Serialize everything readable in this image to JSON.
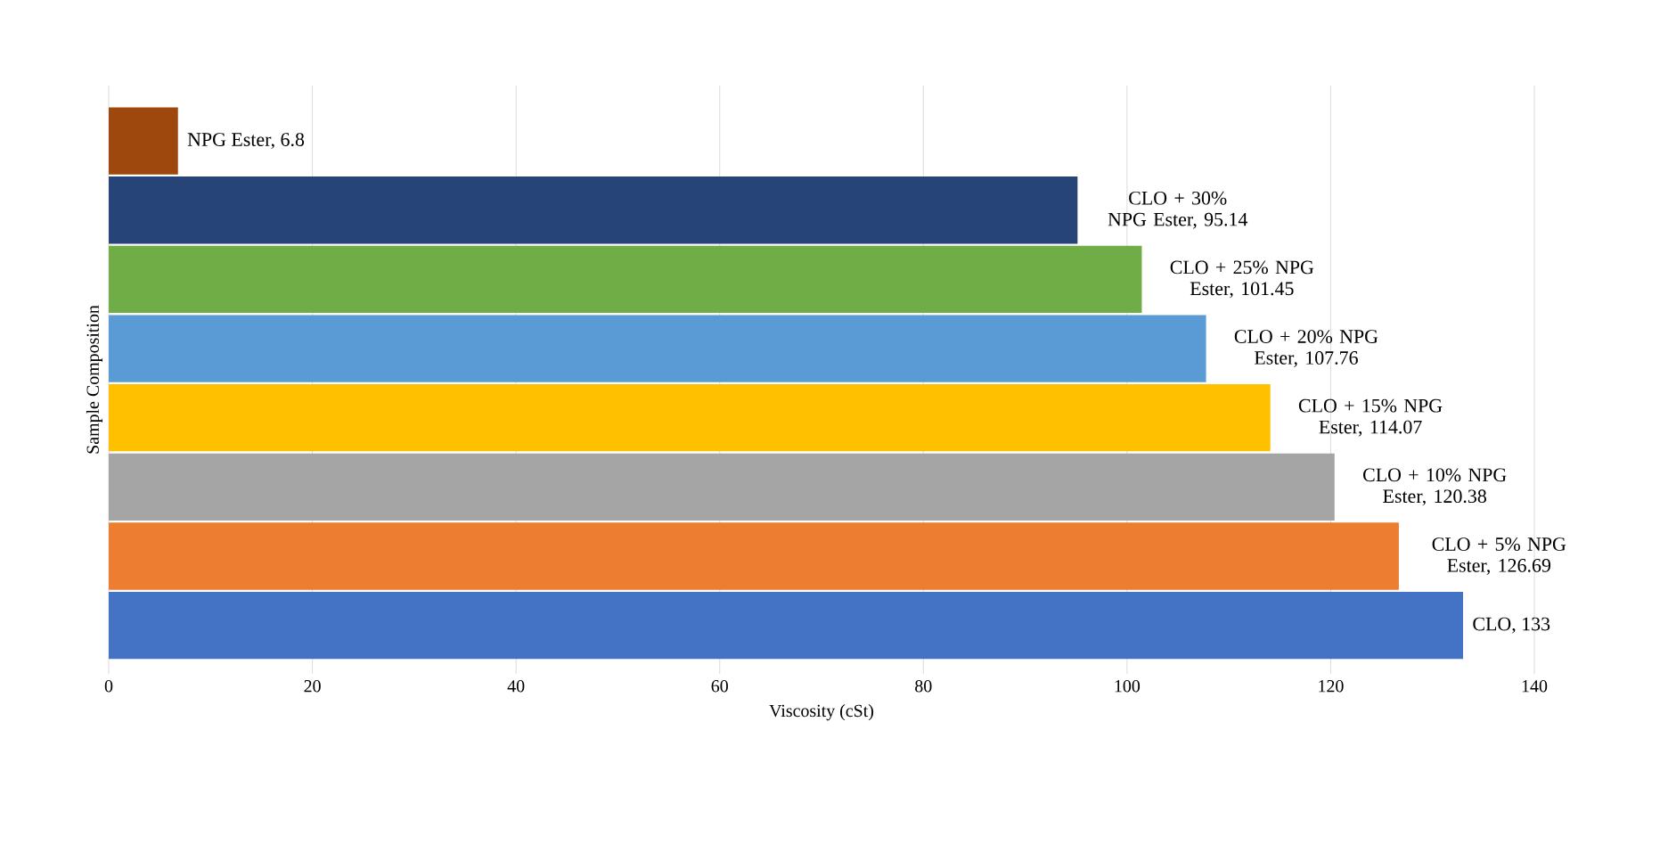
{
  "chart_data": {
    "type": "bar",
    "orientation": "horizontal",
    "xlabel": "Viscosity (cSt)",
    "ylabel": "Sample Composition",
    "categories": [
      null,
      null,
      null,
      null,
      null,
      null,
      null,
      null
    ],
    "values": [
      6.8,
      95.14,
      101.45,
      107.76,
      114.07,
      120.38,
      126.69,
      133
    ],
    "colors": [
      "#9e480e",
      "#264478",
      "#70ad47",
      "#5b9bd5",
      "#ffc000",
      "#a5a5a5",
      "#ed7d31",
      "#4472c4"
    ],
    "value_labels": [
      "NPG Ester, 6.8",
      "CLO + 30% NPG Ester, 95.14",
      "CLO + 25% NPG Ester, 101.45",
      "CLO + 20% NPG Ester, 107.76",
      "CLO + 15% NPG Ester, 114.07",
      "CLO + 10% NPG Ester, 120.38",
      "CLO + 5% NPG Ester, 126.69",
      "CLO, 133"
    ],
    "xlim": [
      0,
      140
    ],
    "xticks": [
      0,
      20,
      40,
      60,
      80,
      100,
      120,
      140
    ],
    "grid": "x",
    "tick_labels": "x"
  }
}
